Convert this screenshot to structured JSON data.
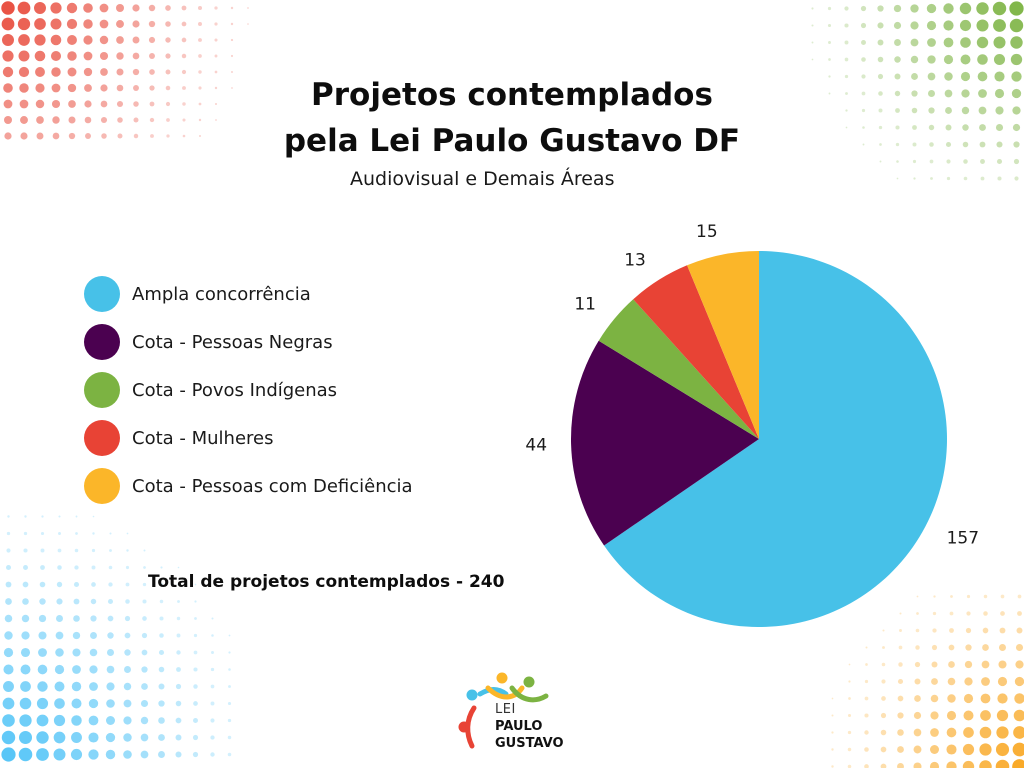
{
  "header": {
    "title_line1": "Projetos contemplados",
    "title_line2": "pela Lei Paulo Gustavo DF",
    "subtitle": "Audiovisual e Demais Áreas"
  },
  "total_text": "Total de projetos contemplados - 240",
  "logo": {
    "line1": "LEI",
    "line2": "PAULO",
    "line3": "GUSTAVO"
  },
  "decor_colors": {
    "red": "#e84c3d",
    "green": "#7cb342",
    "blue": "#4fc3f7",
    "orange": "#f9a825"
  },
  "chart_data": {
    "type": "pie",
    "title": "Projetos contemplados pela Lei Paulo Gustavo DF",
    "subtitle": "Audiovisual e Demais Áreas",
    "legend_placement": "left",
    "categories": [
      "Ampla concorrência",
      "Cota - Pessoas Negras",
      "Cota - Povos Indígenas",
      "Cota - Mulheres",
      "Cota - Pessoas com Deficiência"
    ],
    "values": [
      157,
      44,
      11,
      13,
      15
    ],
    "colors": [
      "#47c1e8",
      "#4b0150",
      "#7cb342",
      "#e84335",
      "#fbb629"
    ]
  }
}
